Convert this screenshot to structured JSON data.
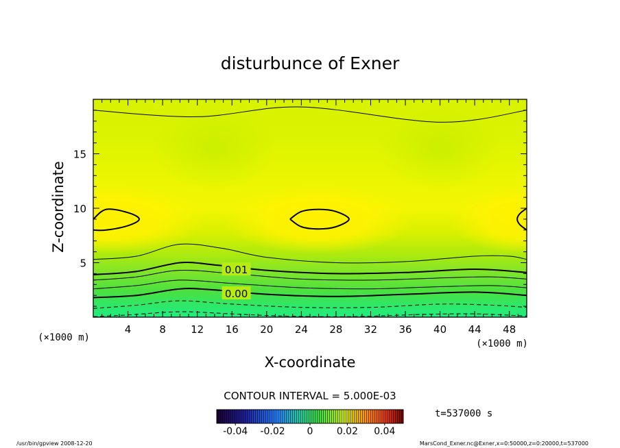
{
  "chart_data": {
    "type": "heatmap",
    "title": "disturbunce of Exner",
    "xlabel": "X-coordinate",
    "ylabel": "Z-coordinate",
    "x_unit": "(×1000 m)",
    "x_unit_right": "(×1000 m)",
    "xlim": [
      0,
      50
    ],
    "ylim": [
      0,
      20
    ],
    "xticks": [
      4,
      8,
      12,
      16,
      20,
      24,
      28,
      32,
      36,
      40,
      44,
      48
    ],
    "yticks": [
      5,
      10,
      15
    ],
    "contour_interval_label": "CONTOUR INTERVAL = 5.000E-03",
    "contour_labels": [
      {
        "text": "0.01",
        "x": 16.5,
        "z": 4.4
      },
      {
        "text": "0.00",
        "x": 16.5,
        "z": 2.2
      }
    ],
    "contours": [
      {
        "level": 0.0125,
        "style": "thin",
        "points": [
          [
            0,
            19.0
          ],
          [
            12,
            18.4
          ],
          [
            24,
            19.3
          ],
          [
            40,
            17.9
          ],
          [
            50,
            19.0
          ]
        ]
      },
      {
        "level": 0.025,
        "style": "thick",
        "points": [
          [
            0,
            9.0
          ],
          [
            1.5,
            9.9
          ],
          [
            4,
            9.6
          ],
          [
            5.3,
            9.0
          ],
          [
            4,
            8.4
          ],
          [
            1.5,
            8.0
          ],
          [
            0,
            8.0
          ]
        ]
      },
      {
        "level": 0.025,
        "style": "thick",
        "points": [
          [
            22.7,
            9.0
          ],
          [
            24,
            9.7
          ],
          [
            26,
            9.9
          ],
          [
            28,
            9.7
          ],
          [
            29.5,
            9.0
          ],
          [
            28,
            8.3
          ],
          [
            26,
            8.1
          ],
          [
            24,
            8.3
          ],
          [
            22.7,
            9.0
          ]
        ]
      },
      {
        "level": 0.025,
        "style": "thick",
        "points": [
          [
            50,
            10.0
          ],
          [
            49.2,
            9.5
          ],
          [
            48.9,
            9.0
          ],
          [
            49.2,
            8.5
          ],
          [
            50,
            8.0
          ]
        ]
      },
      {
        "level": 0.0125,
        "style": "thin",
        "points": [
          [
            0,
            5.3
          ],
          [
            5,
            5.6
          ],
          [
            10,
            6.7
          ],
          [
            15,
            6.3
          ],
          [
            20,
            5.5
          ],
          [
            28,
            5.0
          ],
          [
            36,
            5.1
          ],
          [
            44,
            5.6
          ],
          [
            48,
            5.6
          ],
          [
            50,
            5.3
          ]
        ]
      },
      {
        "level": 0.01,
        "style": "thick",
        "points": [
          [
            0,
            3.9
          ],
          [
            5,
            4.2
          ],
          [
            10,
            5.0
          ],
          [
            14,
            4.8
          ],
          [
            20,
            4.3
          ],
          [
            28,
            4.0
          ],
          [
            36,
            4.1
          ],
          [
            44,
            4.4
          ],
          [
            50,
            4.1
          ]
        ]
      },
      {
        "level": 0.0075,
        "style": "thin",
        "points": [
          [
            0,
            3.4
          ],
          [
            5,
            3.7
          ],
          [
            10,
            4.3
          ],
          [
            16,
            4.0
          ],
          [
            24,
            3.5
          ],
          [
            32,
            3.4
          ],
          [
            40,
            3.6
          ],
          [
            46,
            3.7
          ],
          [
            50,
            3.5
          ]
        ]
      },
      {
        "level": 0.005,
        "style": "thin",
        "points": [
          [
            0,
            2.6
          ],
          [
            5,
            2.9
          ],
          [
            10,
            3.4
          ],
          [
            16,
            3.1
          ],
          [
            24,
            2.7
          ],
          [
            32,
            2.6
          ],
          [
            40,
            2.8
          ],
          [
            46,
            2.9
          ],
          [
            50,
            2.7
          ]
        ]
      },
      {
        "level": 0.0,
        "style": "thick",
        "points": [
          [
            0,
            1.8
          ],
          [
            5,
            2.0
          ],
          [
            10,
            2.6
          ],
          [
            14,
            2.5
          ],
          [
            20,
            2.1
          ],
          [
            28,
            1.9
          ],
          [
            36,
            2.1
          ],
          [
            44,
            2.3
          ],
          [
            50,
            2.0
          ]
        ]
      },
      {
        "level": -0.005,
        "style": "dashed",
        "points": [
          [
            0,
            0.8
          ],
          [
            5,
            1.1
          ],
          [
            10,
            1.5
          ],
          [
            16,
            1.2
          ],
          [
            24,
            0.9
          ],
          [
            32,
            0.9
          ],
          [
            40,
            1.2
          ],
          [
            46,
            1.1
          ],
          [
            50,
            0.9
          ]
        ]
      },
      {
        "level": -0.01,
        "style": "dashed",
        "points": [
          [
            0,
            0.05
          ],
          [
            4,
            0.2
          ],
          [
            10,
            0.5
          ],
          [
            16,
            0.3
          ],
          [
            22,
            0.1
          ],
          [
            30,
            0.05
          ],
          [
            38,
            0.25
          ],
          [
            44,
            0.3
          ],
          [
            50,
            0.1
          ]
        ]
      }
    ],
    "colorbar": {
      "min": -0.05,
      "max": 0.05,
      "tick_labels": [
        "-0.04",
        "-0.02",
        "0",
        "0.02",
        "0.04"
      ],
      "tick_values": [
        -0.04,
        -0.02,
        0,
        0.02,
        0.04
      ]
    },
    "time_label": "t=537000 s",
    "footer_left": "/usr/bin/gpview   2008-12-20",
    "footer_right": "MarsCond_Exner.nc@Exner,x=0:50000,z=0:20000,t=537000"
  },
  "colors": {
    "frame": "#000000",
    "low_near_surface": "#33e870",
    "mid": "#c8f000",
    "upper": "#dcf500",
    "max_core": "#fff200"
  }
}
